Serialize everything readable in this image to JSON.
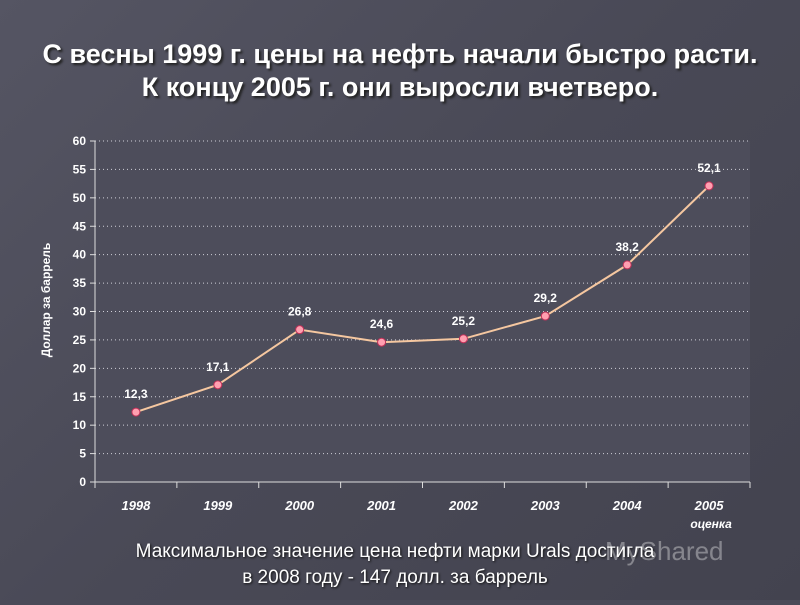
{
  "slide": {
    "title_line1": "С весны 1999 г. цены на нефть начали быстро расти.",
    "title_line2": "К концу 2005 г. они выросли вчетверо.",
    "caption_line1": "Максимальное значение цена нефти марки Urals достигла",
    "caption_line2": "в 2008 году - 147 долл. за баррель",
    "watermark": "MyShared"
  },
  "colors": {
    "background": "#4a4a58",
    "plot_area": "#4d4d5b",
    "line": "#f5c7a0",
    "marker_fill": "#ff9fb0",
    "marker_stroke": "#c03058",
    "text": "#ffffff"
  },
  "chart_data": {
    "type": "line",
    "categories": [
      "1998",
      "1999",
      "2000",
      "2001",
      "2002",
      "2003",
      "2004",
      "2005"
    ],
    "category_sublabels": [
      "",
      "",
      "",
      "",
      "",
      "",
      "",
      "оценка"
    ],
    "values": [
      12.3,
      17.1,
      26.8,
      24.6,
      25.2,
      29.2,
      38.2,
      52.1
    ],
    "data_labels": [
      "12,3",
      "17,1",
      "26,8",
      "24,6",
      "25,2",
      "29,2",
      "38,2",
      "52,1"
    ],
    "title": "",
    "xlabel": "",
    "ylabel": "Доллар за баррель",
    "ylim": [
      0,
      60
    ],
    "yticks": [
      "0",
      "5",
      "10",
      "15",
      "20",
      "25",
      "30",
      "35",
      "40",
      "45",
      "50",
      "55",
      "60"
    ],
    "grid": "horizontal-dotted",
    "legend": "none"
  }
}
